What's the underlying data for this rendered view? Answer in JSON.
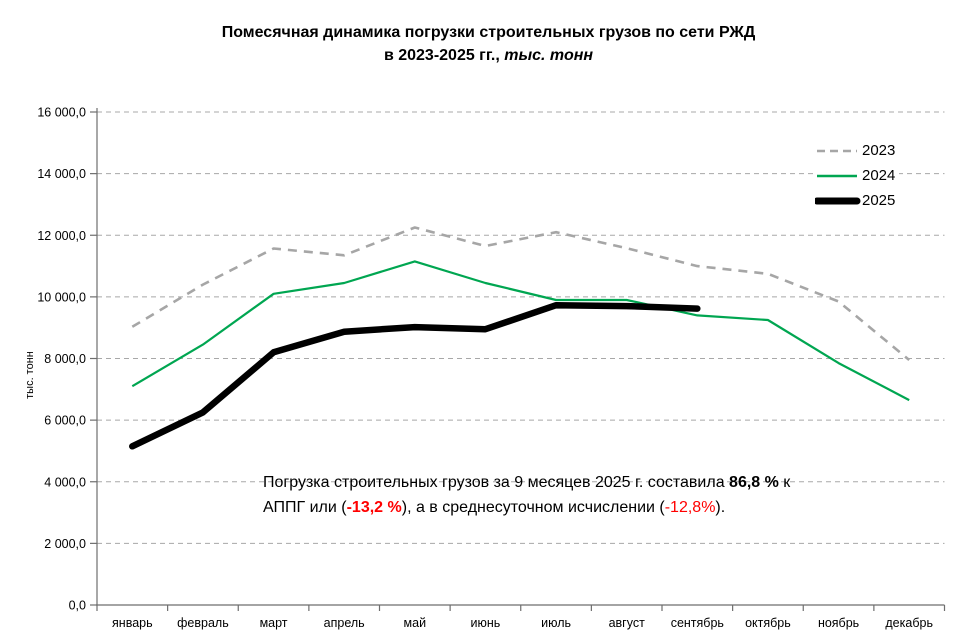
{
  "title": {
    "line1": "Помесячная динамика  погрузки строительных грузов по сети РЖД",
    "line2_prefix": "в 2023-2025 гг., ",
    "line2_units": "тыс. тонн"
  },
  "y_axis_title": "тыс. тонн",
  "annotation": {
    "parts": [
      {
        "text": "Погрузка строительных грузов за 9 месяцев  2025 г. составила ",
        "style": "normal"
      },
      {
        "text": "86,8 %",
        "style": "bold"
      },
      {
        "text": " к",
        "style": "normal"
      },
      {
        "style": "br"
      },
      {
        "text": "АППГ или (",
        "style": "normal"
      },
      {
        "text": "-13,2 %",
        "style": "bold-red"
      },
      {
        "text": "),  а в среднесуточном исчислении (",
        "style": "normal"
      },
      {
        "text": "-12,8%",
        "style": "red"
      },
      {
        "text": ").",
        "style": "normal"
      }
    ]
  },
  "chart_data": {
    "type": "line",
    "title": "Помесячная динамика погрузки строительных грузов по сети РЖД в 2023-2025 гг., тыс. тонн",
    "xlabel": "",
    "ylabel": "тыс. тонн",
    "categories": [
      "январь",
      "февраль",
      "март",
      "апрель",
      "май",
      "июнь",
      "июль",
      "август",
      "сентябрь",
      "октябрь",
      "ноябрь",
      "декабрь"
    ],
    "ylim": [
      0,
      16000
    ],
    "ytick_step": 2000,
    "ytick_labels": [
      "0,0",
      "2 000,0",
      "4 000,0",
      "6 000,0",
      "8 000,0",
      "10 000,0",
      "12 000,0",
      "14 000,0",
      "16 000,0"
    ],
    "grid": "horizontal-dashed",
    "legend_position": "top-right",
    "series": [
      {
        "name": "2023",
        "color": "#a6a6a6",
        "style": "dashed",
        "width": 2.6,
        "values": [
          9030,
          10400,
          11570,
          11350,
          12250,
          11650,
          12100,
          11580,
          11000,
          10750,
          9850,
          7950
        ]
      },
      {
        "name": "2024",
        "color": "#00a651",
        "style": "solid",
        "width": 2.2,
        "values": [
          7100,
          8450,
          10100,
          10450,
          11150,
          10450,
          9900,
          9900,
          9400,
          9250,
          7850,
          6650
        ]
      },
      {
        "name": "2025",
        "color": "#000000",
        "style": "solid-thick",
        "width": 6.5,
        "values": [
          5150,
          6250,
          8200,
          8870,
          9020,
          8950,
          9730,
          9700,
          9620
        ]
      }
    ]
  }
}
